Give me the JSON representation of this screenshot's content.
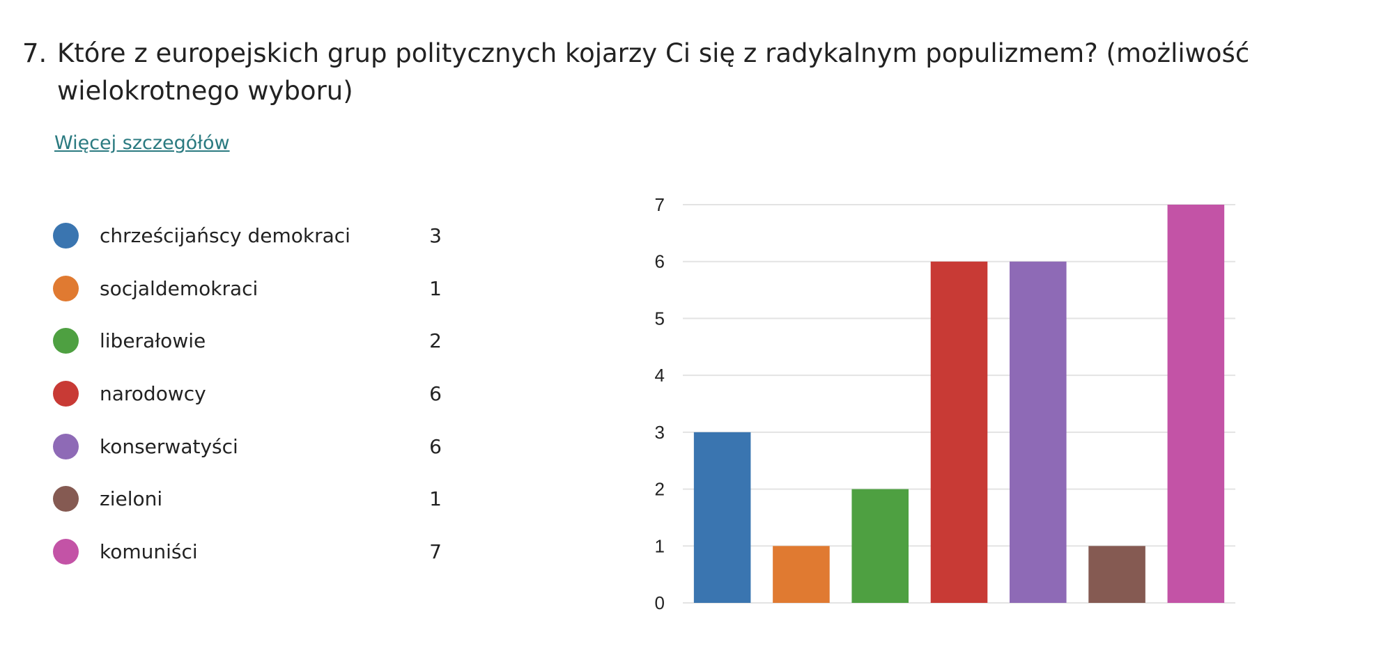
{
  "question": {
    "number": "7.",
    "text": "Które z europejskich grup politycznych kojarzy Ci się z radykalnym populizmem? (możliwość wielokrotnego wyboru)"
  },
  "details_link": "Więcej szczegółów",
  "legend": [
    {
      "label": "chrześcijańscy demokraci",
      "count": "3",
      "color": "#3a75b0"
    },
    {
      "label": "socjaldemokraci",
      "count": "1",
      "color": "#e07a31"
    },
    {
      "label": "liberałowie",
      "count": "2",
      "color": "#4ea041"
    },
    {
      "label": "narodowcy",
      "count": "6",
      "color": "#c83a35"
    },
    {
      "label": "konserwatyści",
      "count": "6",
      "color": "#8e6ab6"
    },
    {
      "label": "zieloni",
      "count": "1",
      "color": "#855a52"
    },
    {
      "label": "komuniści",
      "count": "7",
      "color": "#c353a6"
    }
  ],
  "chart_data": {
    "type": "bar",
    "categories": [
      "chrześcijańscy demokraci",
      "socjaldemokraci",
      "liberałowie",
      "narodowcy",
      "konserwatyści",
      "zieloni",
      "komuniści"
    ],
    "values": [
      3,
      1,
      2,
      6,
      6,
      1,
      7
    ],
    "colors": [
      "#3a75b0",
      "#e07a31",
      "#4ea041",
      "#c83a35",
      "#8e6ab6",
      "#855a52",
      "#c353a6"
    ],
    "y_ticks": [
      "0",
      "1",
      "2",
      "3",
      "4",
      "5",
      "6",
      "7"
    ],
    "ylim": [
      0,
      7
    ],
    "grid": true
  }
}
